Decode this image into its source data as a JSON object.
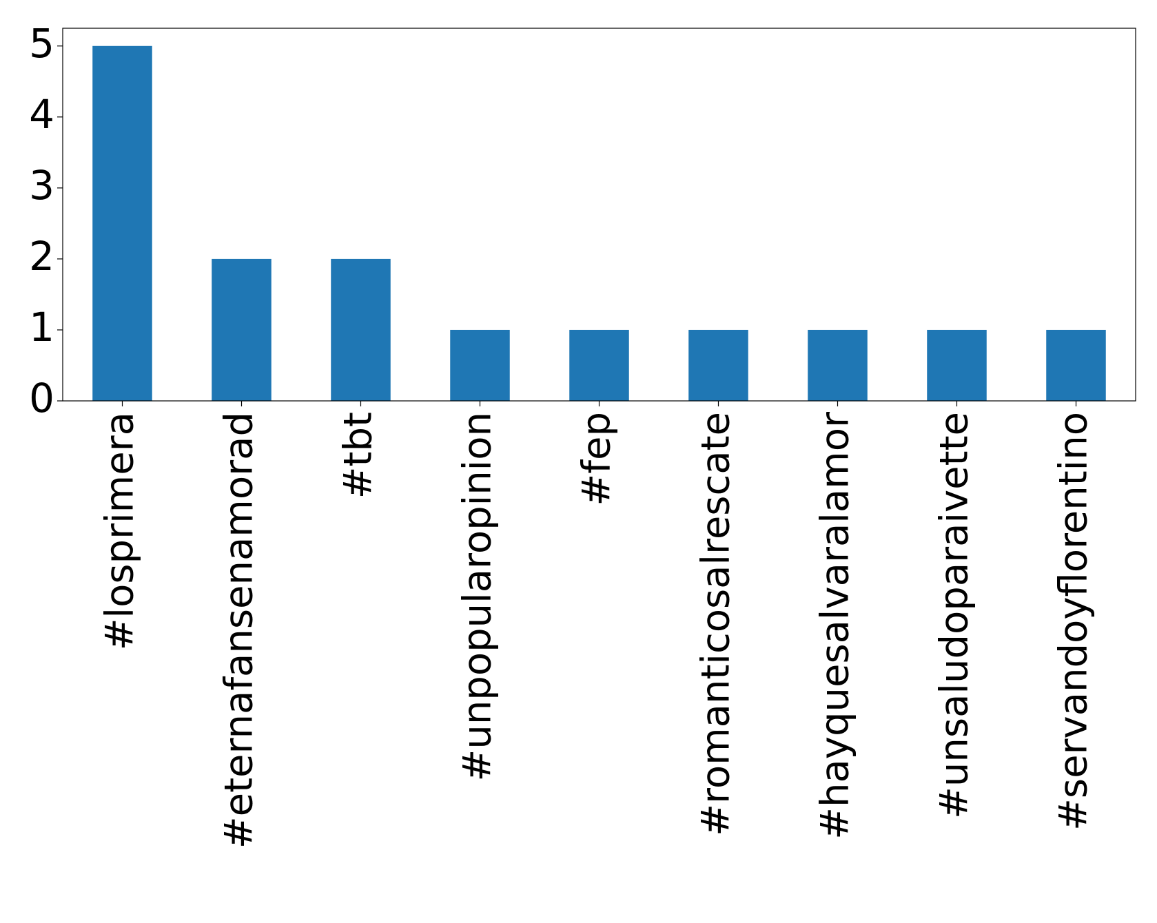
{
  "chart_data": {
    "type": "bar",
    "categories": [
      "#losprimera",
      "#eternafansenamorad",
      "#tbt",
      "#unpopularopinion",
      "#fep",
      "#romanticosalrescate",
      "#hayquesalvaralamor",
      "#unsaludoparaivette",
      "#servandoyflorentino"
    ],
    "values": [
      5,
      2,
      2,
      1,
      1,
      1,
      1,
      1,
      1
    ],
    "color": "#1f77b4",
    "ylim": [
      0,
      5.25
    ],
    "yticks": [
      0,
      1,
      2,
      3,
      4,
      5
    ],
    "grid": false
  }
}
